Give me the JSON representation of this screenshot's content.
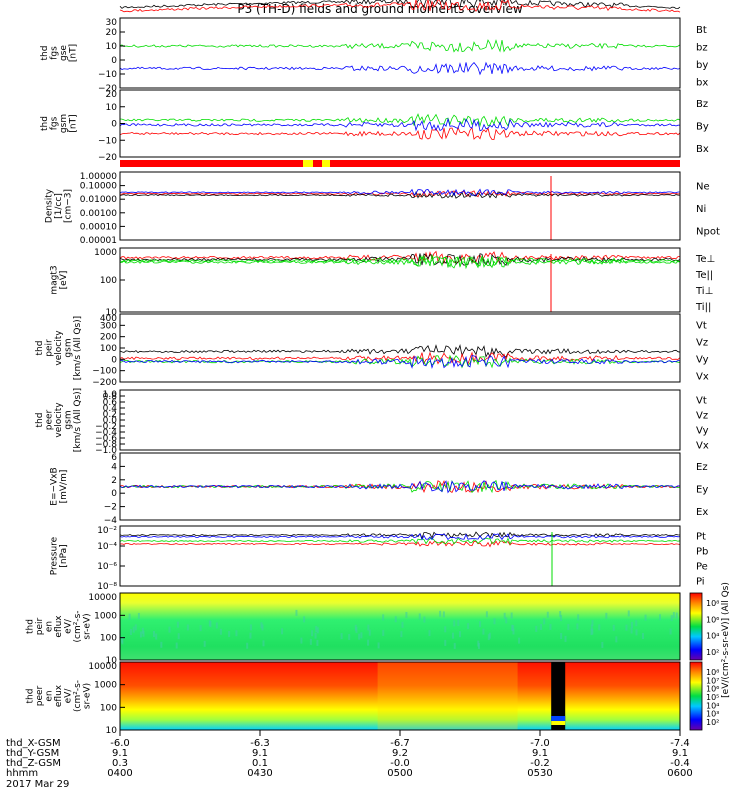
{
  "title": "P3 (TH-D) fields and ground moments overview",
  "date": "2017 Mar 29",
  "colors": {
    "black": "#000000",
    "red": "#ff0000",
    "green": "#00dd00",
    "blue": "#0000ff",
    "yellow": "#ffff00"
  },
  "time_axis": {
    "label_rows": [
      "thd_X-GSM",
      "thd_Y-GSM",
      "thd_Z-GSM",
      "hhmm"
    ],
    "ticks": [
      {
        "time": "0400",
        "x": "-6.0",
        "y": "9.1",
        "z": "0.3"
      },
      {
        "time": "0430",
        "x": "-6.3",
        "y": "9.1",
        "z": "0.1"
      },
      {
        "time": "0500",
        "x": "-6.7",
        "y": "9.2",
        "z": "-0.0"
      },
      {
        "time": "0530",
        "x": "-7.0",
        "y": "9.1",
        "z": "-0.2"
      },
      {
        "time": "0600",
        "x": "-7.4",
        "y": "9.1",
        "z": "-0.4"
      }
    ]
  },
  "chart_data": [
    {
      "id": "p1",
      "type": "line",
      "ylabel": [
        "thd",
        "fgs",
        "gse",
        "[nT]"
      ],
      "ylim": [
        -20,
        30
      ],
      "yticks": [
        "30",
        "20",
        "10",
        "0",
        "−10",
        "−20"
      ],
      "legend": [
        {
          "name": "Bt",
          "color": "#000000"
        },
        {
          "name": "bz",
          "color": "#ff0000"
        },
        {
          "name": "by",
          "color": "#00dd00"
        },
        {
          "name": "bx",
          "color": "#0000ff"
        }
      ]
    },
    {
      "id": "p2",
      "type": "line",
      "ylabel": [
        "thd",
        "fgs",
        "gsm",
        "[nT]"
      ],
      "ylim": [
        -25,
        15
      ],
      "yticks": [
        "20",
        "10",
        "0",
        "−10",
        "−20"
      ],
      "legend": [
        {
          "name": "Bz",
          "color": "#ff0000"
        },
        {
          "name": "By",
          "color": "#00dd00"
        },
        {
          "name": "Bx",
          "color": "#0000ff"
        }
      ]
    },
    {
      "id": "p3",
      "type": "line",
      "scale": "log",
      "ylabel": [
        "Density",
        "[1/cc]",
        "[cm−3]"
      ],
      "ylim": [
        1e-05,
        1
      ],
      "yticks": [
        "1.00000",
        "0.10000",
        "0.01000",
        "0.00100",
        "0.00010",
        "0.00001"
      ],
      "legend": [
        {
          "name": "Ne",
          "color": "#ff0000"
        },
        {
          "name": "Ni",
          "color": "#000000"
        },
        {
          "name": "Npot",
          "color": "#0000ff"
        }
      ]
    },
    {
      "id": "p4",
      "type": "line",
      "scale": "log",
      "ylabel": [
        "magt3",
        "[eV]"
      ],
      "ylim": [
        10,
        10000
      ],
      "yticks": [
        "1000",
        "100",
        "10"
      ],
      "legend": [
        {
          "name": "Te⊥",
          "color": "#ff0000"
        },
        {
          "name": "Te||",
          "color": "#000000"
        },
        {
          "name": "Ti⊥",
          "color": "#00dd00"
        },
        {
          "name": "Ti||",
          "color": "#00dd00"
        }
      ]
    },
    {
      "id": "p5",
      "type": "line",
      "ylabel": [
        "thd",
        "peir",
        "velocity",
        "gsm",
        "[km/s (All Qs)]"
      ],
      "ylim": [
        -200,
        400
      ],
      "yticks": [
        "400",
        "300",
        "200",
        "100",
        "0",
        "−100",
        "−200"
      ],
      "legend": [
        {
          "name": "Vt",
          "color": "#000000"
        },
        {
          "name": "Vz",
          "color": "#ff0000"
        },
        {
          "name": "Vy",
          "color": "#00dd00"
        },
        {
          "name": "Vx",
          "color": "#0000ff"
        }
      ]
    },
    {
      "id": "p6",
      "type": "line",
      "ylabel": [
        "thd",
        "peer",
        "velocity",
        "gsm",
        "[km/s (All Qs)]"
      ],
      "ylim": [
        -1,
        1
      ],
      "yticks": [
        "1.0",
        "0.8",
        "0.6",
        "0.4",
        "0.2",
        "0.0",
        "−0.2",
        "−0.4",
        "−0.6",
        "−0.8",
        "−1.0"
      ],
      "legend": [
        {
          "name": "Vt",
          "color": "#000000"
        },
        {
          "name": "Vz",
          "color": "#ff0000"
        },
        {
          "name": "Vy",
          "color": "#00dd00"
        },
        {
          "name": "Vx",
          "color": "#0000ff"
        }
      ]
    },
    {
      "id": "p7",
      "type": "line",
      "ylabel": [
        "E=−VxB",
        "[mV/m]"
      ],
      "ylim": [
        -4,
        6
      ],
      "yticks": [
        "6",
        "4",
        "2",
        "0",
        "−2",
        "−4"
      ],
      "legend": [
        {
          "name": "Ez",
          "color": "#ff0000"
        },
        {
          "name": "Ey",
          "color": "#00dd00"
        },
        {
          "name": "Ex",
          "color": "#0000ff"
        }
      ]
    },
    {
      "id": "p8",
      "type": "line",
      "scale": "log",
      "ylabel": [
        "Pressure",
        "[nPa]"
      ],
      "ylim": [
        1e-08,
        1
      ],
      "yticks": [
        "10⁻²",
        "10⁻⁴",
        "10⁻⁶",
        "10⁻⁸"
      ],
      "legend": [
        {
          "name": "Pt",
          "color": "#000000"
        },
        {
          "name": "Pb",
          "color": "#ff0000"
        },
        {
          "name": "Pe",
          "color": "#00dd00"
        },
        {
          "name": "Pi",
          "color": "#0000ff"
        }
      ]
    },
    {
      "id": "p9",
      "type": "heatmap",
      "scale": "log",
      "ylabel": [
        "thd",
        "peir",
        "en",
        "eflux",
        "eV/",
        "(cm²-s-",
        "sr-eV)"
      ],
      "ylim": [
        10,
        10000
      ],
      "yticks": [
        "10000",
        "1000",
        "100",
        "10"
      ],
      "colorbar": {
        "ticks": [
          "10⁸",
          "10⁶",
          "10⁴",
          "10²"
        ],
        "label": "[eV/(cm²-s-sr-eV)] (All Qs)"
      }
    },
    {
      "id": "p10",
      "type": "heatmap",
      "scale": "log",
      "ylabel": [
        "thd",
        "peer",
        "en",
        "eflux",
        "eV/",
        "(cm²-s-",
        "sr-eV)"
      ],
      "ylim": [
        10,
        10000
      ],
      "yticks": [
        "10000",
        "1000",
        "100",
        "10"
      ],
      "colorbar": {
        "ticks": [
          "10⁸",
          "10⁷",
          "10⁶",
          "10⁵",
          "10⁴",
          "10³",
          "10²"
        ],
        "label": "[eV/(cm²-s-sr-eV)]"
      }
    }
  ]
}
